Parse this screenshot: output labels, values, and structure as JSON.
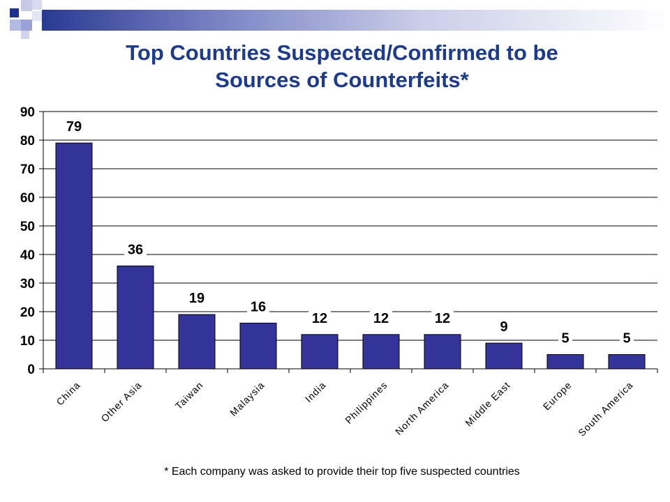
{
  "title_lines": [
    "Top Countries Suspected/Confirmed to be",
    "Sources of Counterfeits*"
  ],
  "footnote": "* Each company was asked to provide their top five suspected countries",
  "colors": {
    "bar": "#333399",
    "title": "#1c3b8f",
    "deco_dark": "#1f2f8f",
    "deco_light": "#9aa3d6"
  },
  "chart_data": {
    "type": "bar",
    "categories": [
      "China",
      "Other Asia",
      "Taiwan",
      "Malaysia",
      "India",
      "Philippines",
      "North America",
      "Middle East",
      "Europe",
      "South America"
    ],
    "values": [
      79,
      36,
      19,
      16,
      12,
      12,
      12,
      9,
      5,
      5
    ],
    "ylim": [
      0,
      90
    ],
    "yticks": [
      0,
      10,
      20,
      30,
      40,
      50,
      60,
      70,
      80,
      90
    ],
    "grid": true,
    "data_labels": true
  }
}
